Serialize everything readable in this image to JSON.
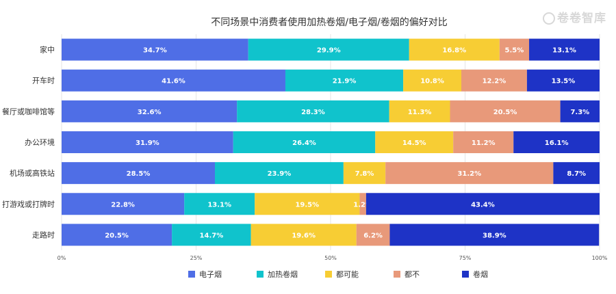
{
  "watermark_text": "卷卷智库",
  "chart_data": {
    "type": "bar",
    "orientation": "horizontal",
    "stacked": true,
    "normalized": true,
    "title": "不同场景中消费者使用加热卷烟/电子烟/卷烟的偏好对比",
    "categories": [
      "家中",
      "开车时",
      "餐厅或咖啡馆等",
      "办公环境",
      "机场或高铁站",
      "打游戏或打牌时",
      "走路时"
    ],
    "series": [
      {
        "name": "电子烟",
        "color": "#4f6ee6",
        "values": [
          34.7,
          41.6,
          32.6,
          31.9,
          28.5,
          22.8,
          20.5
        ]
      },
      {
        "name": "加热卷烟",
        "color": "#10c3cc",
        "values": [
          29.9,
          21.9,
          28.3,
          26.4,
          23.9,
          13.1,
          14.7
        ]
      },
      {
        "name": "都可能",
        "color": "#f7cd34",
        "values": [
          16.8,
          10.8,
          11.3,
          14.5,
          7.8,
          19.5,
          19.6
        ]
      },
      {
        "name": "都不",
        "color": "#e8997a",
        "values": [
          5.5,
          12.2,
          20.5,
          11.2,
          31.2,
          1.2,
          6.2
        ]
      },
      {
        "name": "卷烟",
        "color": "#1e33c6",
        "values": [
          13.1,
          13.5,
          7.3,
          16.1,
          8.7,
          43.4,
          38.9
        ]
      }
    ],
    "value_labels": [
      [
        "34.7%",
        "29.9%",
        "16.8%",
        "5.5%",
        "13.1%"
      ],
      [
        "41.6%",
        "21.9%",
        "10.8%",
        "12.2%",
        "13.5%"
      ],
      [
        "32.6%",
        "28.3%",
        "11.3%",
        "20.5%",
        "7.3%"
      ],
      [
        "31.9%",
        "26.4%",
        "14.5%",
        "11.2%",
        "16.1%"
      ],
      [
        "28.5%",
        "23.9%",
        "7.8%",
        "31.2%",
        "8.7%"
      ],
      [
        "22.8%",
        "13.1%",
        "19.5%",
        "1.2%",
        "43.4%"
      ],
      [
        "20.5%",
        "14.7%",
        "19.6%",
        "6.2%",
        "38.9%"
      ]
    ],
    "x_ticks": [
      0,
      25,
      50,
      75,
      100
    ],
    "x_tick_labels": [
      "0%",
      "25%",
      "50%",
      "75%",
      "100%"
    ],
    "xlim": [
      0,
      100
    ],
    "grid": true,
    "legend_position": "bottom"
  }
}
